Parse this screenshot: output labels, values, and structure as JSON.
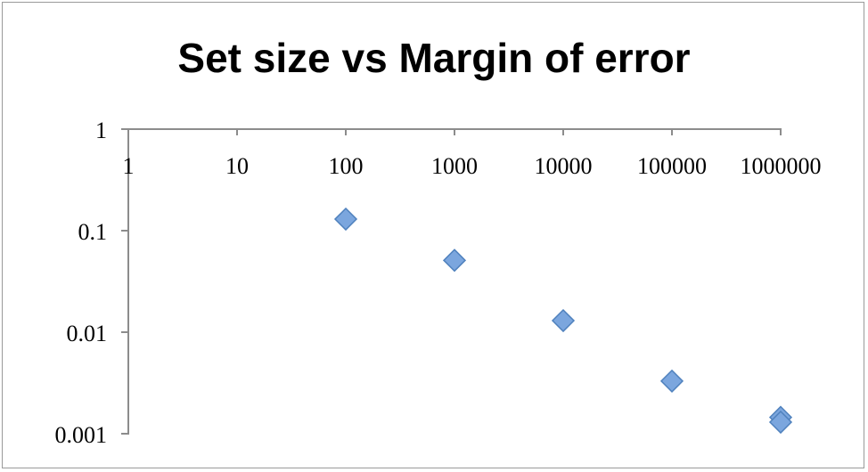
{
  "chart_data": {
    "type": "scatter",
    "title": "Set size vs Margin of error",
    "x_scale": "log",
    "y_scale": "log",
    "xlim": [
      1,
      1000000
    ],
    "ylim": [
      0.001,
      1
    ],
    "x_ticks": [
      "1",
      "10",
      "100",
      "1000",
      "10000",
      "100000",
      "1000000"
    ],
    "y_ticks": [
      "1",
      "0.1",
      "0.01",
      "0.001"
    ],
    "grid": false,
    "legend": "none",
    "marker": "diamond",
    "marker_color": "#7ba6de",
    "marker_edge_color": "#4f81bd",
    "x_axis_position": "top",
    "points": [
      {
        "x": 100,
        "y": 0.13
      },
      {
        "x": 1000,
        "y": 0.051
      },
      {
        "x": 10000,
        "y": 0.013
      },
      {
        "x": 100000,
        "y": 0.0033
      },
      {
        "x": 1000000,
        "y": 0.00145
      },
      {
        "x": 1000000,
        "y": 0.0013
      }
    ]
  }
}
